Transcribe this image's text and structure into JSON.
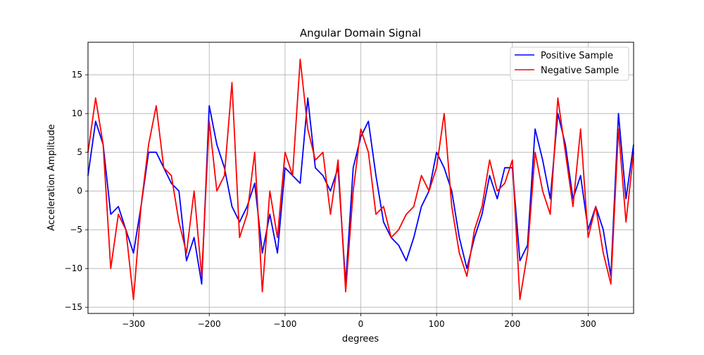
{
  "chart_data": {
    "type": "line",
    "title": "Angular Domain Signal",
    "xlabel": "degrees",
    "ylabel": "Acceleration Amplitude",
    "xlim": [
      -360,
      360
    ],
    "ylim": [
      -15.8,
      19.2
    ],
    "xticks": [
      -300,
      -200,
      -100,
      0,
      100,
      200,
      300
    ],
    "xtick_labels": [
      "−300",
      "−200",
      "−100",
      "0",
      "100",
      "200",
      "300"
    ],
    "yticks": [
      -15,
      -10,
      -5,
      0,
      5,
      10,
      15
    ],
    "ytick_labels": [
      "−15",
      "−10",
      "−5",
      "0",
      "5",
      "10",
      "15"
    ],
    "grid": true,
    "legend_position": "top-right",
    "x": [
      -360,
      -350,
      -340,
      -330,
      -320,
      -310,
      -300,
      -290,
      -280,
      -270,
      -260,
      -250,
      -240,
      -230,
      -220,
      -210,
      -200,
      -190,
      -180,
      -170,
      -160,
      -150,
      -140,
      -130,
      -120,
      -110,
      -100,
      -90,
      -80,
      -70,
      -60,
      -50,
      -40,
      -30,
      -20,
      -10,
      0,
      10,
      20,
      30,
      40,
      50,
      60,
      70,
      80,
      90,
      100,
      110,
      120,
      130,
      140,
      150,
      160,
      170,
      180,
      190,
      200,
      210,
      220,
      230,
      240,
      250,
      260,
      270,
      280,
      290,
      300,
      310,
      320,
      330,
      340,
      350,
      360
    ],
    "series": [
      {
        "name": "Positive Sample",
        "color": "#0000ff",
        "values": [
          2,
          9,
          6,
          -3,
          -2,
          -5,
          -8,
          -2,
          5,
          5,
          3,
          1,
          0,
          -9,
          -6,
          -12,
          11,
          6,
          3,
          -2,
          -4,
          -2,
          1,
          -8,
          -3,
          -8,
          3,
          2,
          1,
          12,
          3,
          2,
          0,
          3,
          -12,
          3,
          7,
          9,
          2,
          -4,
          -6,
          -7,
          -9,
          -6,
          -2,
          0,
          5,
          3,
          0,
          -6,
          -10,
          -6,
          -3,
          2,
          -1,
          3,
          3,
          -9,
          -7,
          8,
          4,
          -1,
          10,
          6,
          -1,
          2,
          -5,
          -2,
          -5,
          -11,
          10,
          -1,
          6
        ]
      },
      {
        "name": "Negative Sample",
        "color": "#ff0000",
        "values": [
          5,
          12,
          6,
          -10,
          -3,
          -5,
          -14,
          -2,
          6,
          11,
          3,
          2,
          -4,
          -8,
          0,
          -11,
          9,
          0,
          2,
          14,
          -6,
          -3,
          5,
          -13,
          0,
          -6,
          5,
          2,
          17,
          8,
          4,
          5,
          -3,
          4,
          -13,
          0,
          8,
          5,
          -3,
          -2,
          -6,
          -5,
          -3,
          -2,
          2,
          0,
          3,
          10,
          -2,
          -8,
          -11,
          -5,
          -2,
          4,
          0,
          1,
          4,
          -14,
          -8,
          5,
          0,
          -3,
          12,
          5,
          -2,
          8,
          -6,
          -2,
          -8,
          -12,
          8,
          -4,
          5
        ]
      }
    ]
  }
}
